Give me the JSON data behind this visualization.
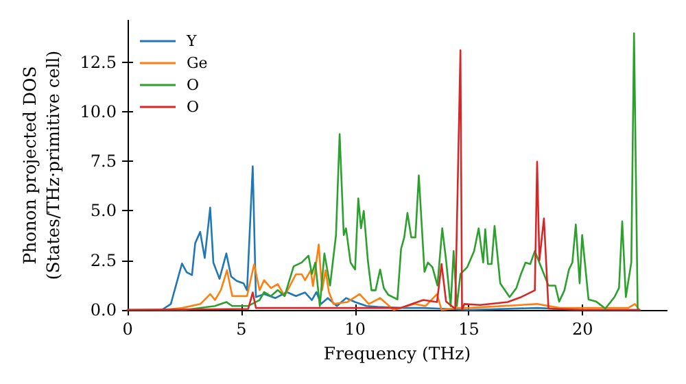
{
  "chart_data": {
    "type": "line",
    "xlabel": "Frequency (THz)",
    "ylabel": "Phonon projected DOS\n(States/THz·primitive cell)",
    "xlim": [
      0,
      23.7
    ],
    "xticks": [
      0,
      5,
      10,
      15,
      20
    ],
    "ylim": [
      0,
      14.6
    ],
    "yticks": [
      {
        "value": 0,
        "label": "0.0"
      },
      2.5,
      {
        "value": 5,
        "label": "5.0"
      },
      7.5,
      {
        "value": 10,
        "label": "10.0"
      },
      12.5
    ],
    "grid": false,
    "legend": "top left",
    "marker": "none",
    "line_style": "solid",
    "series": [
      {
        "name": "Y",
        "color": "#1f77b4",
        "x": [
          0,
          1.5,
          1.9,
          2.39,
          2.6,
          2.83,
          2.97,
          3.19,
          3.39,
          3.63,
          3.77,
          4.04,
          4.34,
          4.55,
          4.8,
          5.1,
          5.25,
          5.5,
          5.64,
          6.0,
          6.5,
          7.0,
          7.4,
          7.8,
          8.1,
          8.3,
          8.5,
          8.8,
          9.2,
          9.6,
          10,
          10.5,
          11,
          12,
          13,
          14,
          15,
          18,
          20,
          22.5
        ],
        "values": [
          0,
          0,
          0.3,
          2.34,
          1.9,
          1.76,
          3.36,
          3.94,
          2.62,
          5.16,
          2.39,
          1.57,
          2.85,
          1.69,
          1.46,
          1.34,
          0.99,
          7.25,
          0.65,
          0.8,
          0.6,
          0.9,
          0.7,
          0.88,
          0.5,
          0.9,
          0.3,
          0.6,
          0.2,
          0.6,
          0.4,
          0.2,
          0.15,
          0.1,
          0.1,
          0.05,
          0,
          0.1,
          0,
          0
        ]
      },
      {
        "name": "Ge",
        "color": "#ff7f0e",
        "x": [
          0,
          1.5,
          2.4,
          3.2,
          3.63,
          3.84,
          4.1,
          4.37,
          4.6,
          5.25,
          5.56,
          5.8,
          6.0,
          6.3,
          6.6,
          6.9,
          7.4,
          7.65,
          7.8,
          8.05,
          8.15,
          8.4,
          8.55,
          8.7,
          8.85,
          9.05,
          9.66,
          10.2,
          10.6,
          11.1,
          11.7,
          12.6,
          13.1,
          13.6,
          13.8,
          14.5,
          15,
          18,
          19,
          22,
          22.3,
          22.5
        ],
        "values": [
          0,
          0,
          0.1,
          0.3,
          0.8,
          0.5,
          1.0,
          2.0,
          0.7,
          0.7,
          2.3,
          1.0,
          1.5,
          1.1,
          1.3,
          0.7,
          1.8,
          1.8,
          1.5,
          2.0,
          1.2,
          3.3,
          1.0,
          2.0,
          0.9,
          0.3,
          0.4,
          0.8,
          0.3,
          0.6,
          0,
          0.3,
          0.2,
          0.8,
          0,
          0.1,
          0.1,
          0.3,
          0.1,
          0.1,
          0.3,
          0
        ]
      },
      {
        "name": "O",
        "color": "#2ca02c",
        "x": [
          0,
          2.5,
          3.84,
          4.34,
          4.6,
          5.3,
          5.8,
          6.0,
          6.3,
          6.6,
          6.9,
          7.3,
          7.65,
          7.95,
          8.1,
          8.25,
          8.45,
          8.65,
          8.9,
          9.16,
          9.32,
          9.5,
          9.6,
          9.8,
          10.0,
          10.14,
          10.26,
          10.38,
          10.56,
          10.72,
          10.9,
          11.1,
          11.26,
          11.46,
          11.86,
          12.02,
          12.16,
          12.3,
          12.47,
          12.65,
          12.8,
          13.05,
          13.2,
          13.4,
          13.62,
          13.83,
          14.0,
          14.2,
          14.33,
          14.47,
          14.63,
          14.93,
          15.23,
          15.43,
          15.63,
          15.72,
          15.84,
          16.0,
          16.13,
          16.38,
          16.79,
          17.09,
          17.29,
          17.49,
          17.7,
          17.9,
          18.1,
          18.5,
          18.8,
          18.97,
          19.2,
          19.4,
          19.55,
          19.7,
          19.87,
          19.98,
          20.26,
          20.6,
          21.0,
          21.4,
          21.6,
          21.74,
          21.9,
          22.14,
          22.26,
          22.42
        ],
        "values": [
          0,
          0,
          0.2,
          0.4,
          0.2,
          0.2,
          0.5,
          0.9,
          0.7,
          1.0,
          0.7,
          2.2,
          2.39,
          2.74,
          1.81,
          2.39,
          0.19,
          2.85,
          1.23,
          3.78,
          8.87,
          3.78,
          4.12,
          2.39,
          2.04,
          5.63,
          4.12,
          5.0,
          2.5,
          0.99,
          0.99,
          2.04,
          1.11,
          0.76,
          0.53,
          3.08,
          3.66,
          4.89,
          3.66,
          3.66,
          6.79,
          1.92,
          2.39,
          2.16,
          1.23,
          4.12,
          2.5,
          0.19,
          2.97,
          0.19,
          1.81,
          2.16,
          2.97,
          4.12,
          2.39,
          4.07,
          2.32,
          2.32,
          4.24,
          1.34,
          0.65,
          1.11,
          1.81,
          2.39,
          2.32,
          2.97,
          2.39,
          1.23,
          1.23,
          0.42,
          0.99,
          2.04,
          2.39,
          4.31,
          1.34,
          3.78,
          0.53,
          0.42,
          0.07,
          0.65,
          1.11,
          4.47,
          0.65,
          2.39,
          13.96,
          0.07
        ]
      },
      {
        "name": "O",
        "color": "#d62728",
        "x": [
          0,
          5.3,
          5.5,
          5.64,
          6.5,
          10,
          12,
          12.5,
          13.0,
          13.6,
          13.8,
          14.0,
          14.4,
          14.63,
          14.7,
          14.8,
          15.5,
          16.7,
          17.3,
          17.7,
          17.9,
          18.0,
          18.1,
          18.3,
          18.5,
          20,
          22.5
        ],
        "values": [
          0,
          0.05,
          0.88,
          0.1,
          0.1,
          0.1,
          0.1,
          0.3,
          0.5,
          0.4,
          2.32,
          0.42,
          0.05,
          13.1,
          0,
          0.3,
          0.25,
          0.4,
          0.65,
          0.88,
          0.99,
          7.48,
          2.5,
          4.62,
          0.07,
          0,
          0
        ]
      }
    ]
  }
}
